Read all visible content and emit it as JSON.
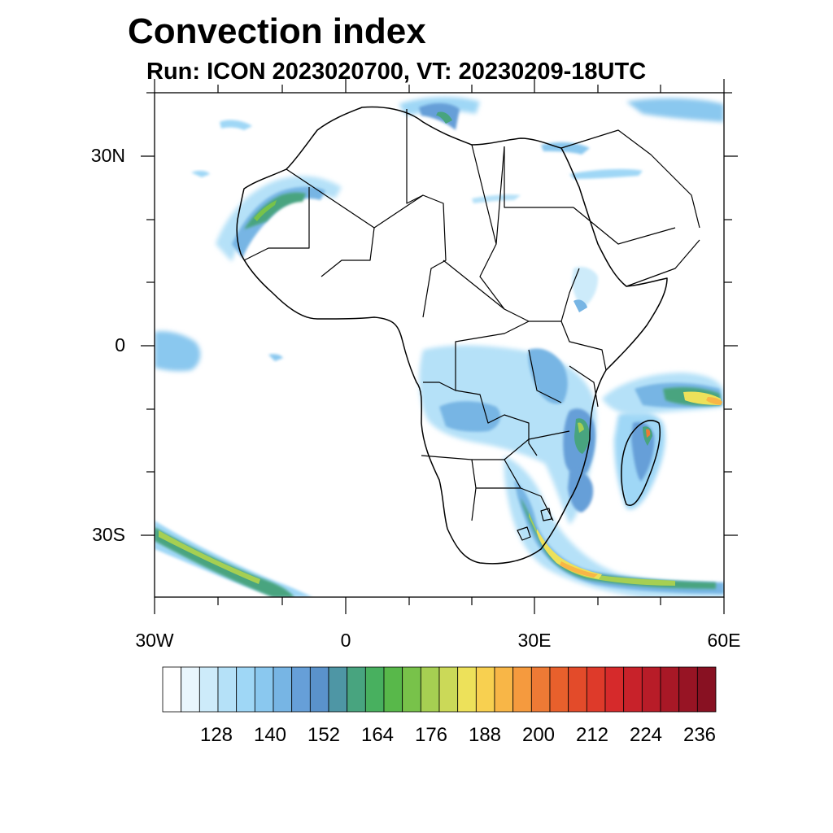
{
  "title": "Convection index",
  "subtitle": "Run: ICON 2023020700,  VT: 20230209-18UTC",
  "axes": {
    "lat_labels": [
      "30N",
      "0",
      "30S"
    ],
    "lon_labels": [
      "30W",
      "0",
      "30E",
      "60E"
    ]
  },
  "chart_data": {
    "type": "heatmap",
    "title": "Convection index",
    "subtitle": "Run: ICON 2023020700,  VT: 20230209-18UTC",
    "xlabel": "",
    "ylabel": "",
    "lon_range": [
      -30,
      60
    ],
    "lat_range": [
      -40,
      40
    ],
    "x_ticks": [
      {
        "value": -30,
        "label": "30W"
      },
      {
        "value": 0,
        "label": "0"
      },
      {
        "value": 30,
        "label": "30E"
      },
      {
        "value": 60,
        "label": "60E"
      }
    ],
    "y_ticks": [
      {
        "value": 30,
        "label": "30N"
      },
      {
        "value": 0,
        "label": "0"
      },
      {
        "value": -30,
        "label": "30S"
      }
    ],
    "colorbar": {
      "levels": [
        116,
        120,
        124,
        128,
        132,
        136,
        140,
        144,
        148,
        152,
        156,
        160,
        164,
        168,
        172,
        176,
        180,
        184,
        188,
        192,
        196,
        200,
        204,
        208,
        212,
        216,
        220,
        224,
        228,
        232,
        236,
        240
      ],
      "labels": [
        "128",
        "140",
        "152",
        "164",
        "176",
        "188",
        "200",
        "212",
        "224",
        "236"
      ],
      "colors": [
        "#ffffff",
        "#e9f6fd",
        "#cdebfa",
        "#b5e1f8",
        "#9fd7f6",
        "#8ac8ef",
        "#77b5e4",
        "#669fd8",
        "#5a92cb",
        "#4e96a5",
        "#48a47f",
        "#48b05f",
        "#58b84a",
        "#78c24a",
        "#a6cf52",
        "#cbd958",
        "#ede15a",
        "#f8d050",
        "#f8b647",
        "#f59a3e",
        "#ee7a35",
        "#e8602c",
        "#e34b2a",
        "#de3a2a",
        "#d62a2b",
        "#c8222a",
        "#b81c28",
        "#a81826",
        "#971424",
        "#881122"
      ]
    },
    "features": [
      {
        "name": "West Sahara / Mauritania coastal band",
        "approx_max": 176
      },
      {
        "name": "Southern Africa to SW Indian Ocean band",
        "approx_max": 196
      },
      {
        "name": "Madagascar / Mozambique Channel",
        "approx_max": 200
      },
      {
        "name": "East African highlands / Congo basin",
        "approx_max": 168
      },
      {
        "name": "Southwest South Atlantic band",
        "approx_max": 176
      },
      {
        "name": "Northeast Indian Ocean east of Madagascar",
        "approx_max": 188
      }
    ]
  }
}
